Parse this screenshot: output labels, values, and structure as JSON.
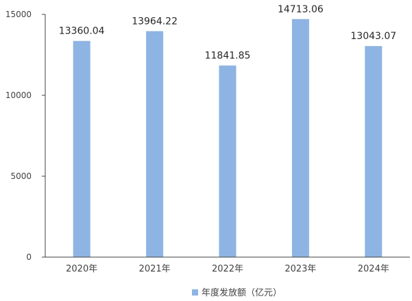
{
  "chart_data": {
    "type": "bar",
    "title": "",
    "xlabel": "",
    "ylabel": "",
    "categories": [
      "2020年",
      "2021年",
      "2022年",
      "2023年",
      "2024年"
    ],
    "series": [
      {
        "name": "年度发放额（亿元）",
        "values": [
          13360.04,
          13964.22,
          11841.85,
          14713.06,
          13043.07
        ],
        "data_labels": [
          "13360.04",
          "13964.22",
          "11841.85",
          "14713.06",
          "13043.07"
        ],
        "color": "#8eb4e3"
      }
    ],
    "ylim": [
      0,
      15000
    ],
    "yticks": [
      0,
      5000,
      10000,
      15000
    ],
    "ytick_labels": [
      "0",
      "5000",
      "10000",
      "15000"
    ],
    "grid": false,
    "legend": "bottom-center",
    "axis_color": "#404040"
  }
}
